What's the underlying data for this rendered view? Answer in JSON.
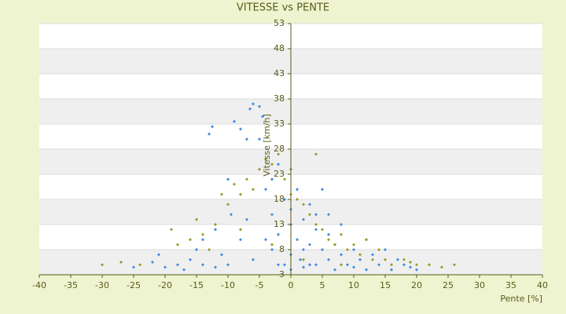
{
  "chart_data": {
    "type": "scatter",
    "title": "VITESSE vs PENTE",
    "x_label": "Pente [%]",
    "y_label": "Vitesse [km/h]",
    "xlim": [
      -40,
      40
    ],
    "xticks": [
      -40,
      -35,
      -30,
      -25,
      -20,
      -15,
      -10,
      -5,
      0,
      5,
      10,
      15,
      20,
      25,
      30,
      35,
      40
    ],
    "ylim": [
      3,
      53
    ],
    "yticks": [
      3,
      8,
      13,
      18,
      23,
      28,
      33,
      38,
      43,
      48,
      53
    ],
    "grid": true,
    "series": [
      {
        "color": "#3a8be0",
        "x": [
          -25,
          -22,
          -21,
          -20,
          -18,
          -17,
          -16,
          -15,
          -14,
          -13,
          -12.5,
          -12,
          -11,
          -10,
          -9.5,
          -9,
          -8,
          -8,
          -7,
          -6.5,
          -6,
          -5,
          -5,
          -4.5,
          -4,
          -3,
          -3,
          -2,
          -2,
          -1,
          -1,
          0,
          0,
          0,
          1,
          1,
          1.5,
          2,
          2,
          3,
          3,
          4,
          4,
          5,
          5,
          6,
          6,
          7,
          7,
          8,
          8,
          9,
          10,
          10,
          11,
          12,
          12,
          13,
          14,
          15,
          16,
          17,
          18,
          19,
          20,
          -6,
          -4,
          -7,
          -3,
          2,
          3,
          -2,
          0,
          4,
          6,
          -10,
          -12,
          -14
        ],
        "values": [
          4.5,
          5.5,
          7,
          4.5,
          5,
          4,
          6,
          8,
          10,
          31,
          32.5,
          12,
          7,
          22,
          15,
          33.5,
          10,
          32,
          30,
          36,
          37,
          36.5,
          30,
          34.5,
          20,
          15,
          8,
          25,
          11,
          5,
          18,
          13,
          7,
          4,
          10,
          20,
          6,
          14,
          4.5,
          9,
          17,
          5,
          12,
          8,
          20,
          6,
          11,
          4,
          9,
          7,
          13,
          5,
          8,
          4.5,
          6,
          10,
          4,
          7,
          5,
          8,
          4,
          6,
          5,
          4.5,
          4,
          6,
          10,
          14,
          22,
          8,
          5,
          5,
          16,
          15,
          15,
          5,
          4.5,
          5
        ]
      },
      {
        "color": "#9a9a22",
        "x": [
          -30,
          -27,
          -24,
          -19,
          -18,
          -16,
          -15,
          -14,
          -12,
          -11,
          -10,
          -9,
          -8,
          -7,
          -6,
          -5,
          -4,
          -3,
          -2,
          -1,
          0,
          0,
          1,
          2,
          3,
          4,
          4,
          5,
          6,
          7,
          8,
          9,
          10,
          11,
          12,
          13,
          14,
          15,
          16,
          18,
          19,
          20,
          22,
          24,
          26,
          -13,
          -8,
          -3,
          2,
          8
        ],
        "values": [
          5,
          5.5,
          5,
          12,
          9,
          10,
          14,
          11,
          13,
          19,
          17,
          21,
          19,
          22,
          20,
          24,
          26,
          25,
          27,
          22,
          19,
          24,
          18,
          17,
          15,
          27,
          13,
          12,
          10,
          9,
          11,
          8,
          9,
          7,
          10,
          6,
          8,
          6,
          5,
          6,
          5.5,
          5,
          5,
          4.5,
          5,
          8,
          12,
          9,
          6,
          5
        ]
      }
    ]
  }
}
